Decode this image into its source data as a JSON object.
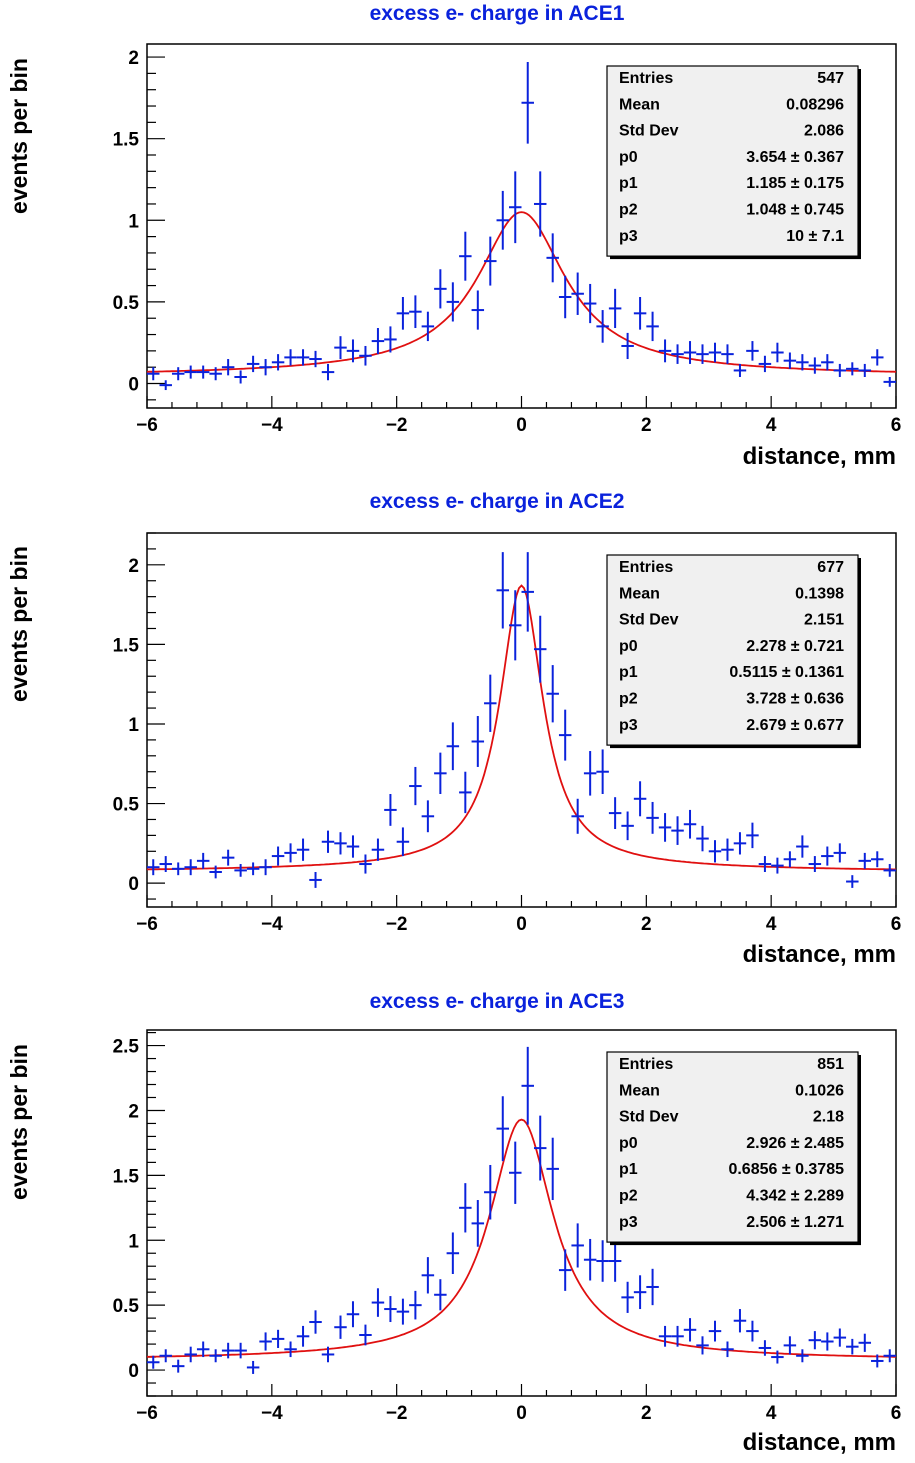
{
  "colors": {
    "data": "#0a22dc",
    "fit": "#e01010",
    "title": "#0a22dc",
    "stats_bg": "#f0f0f0"
  },
  "chart_data": [
    {
      "type": "scatter",
      "title": "excess e- charge in ACE1",
      "xlabel": "distance, mm",
      "ylabel": "events per bin",
      "xlim": [
        -6,
        6
      ],
      "ylim": [
        -0.15,
        2.08
      ],
      "xticks": [
        "−6",
        "−4",
        "−2",
        "0",
        "2",
        "4",
        "6"
      ],
      "yticks": [
        "0",
        "0.5",
        "1",
        "1.5",
        "2"
      ],
      "ytick_values": [
        0,
        0.5,
        1,
        1.5,
        2
      ],
      "fit": {
        "p0": 3.654,
        "p1": 1.185,
        "p2": 1.048,
        "p3": 10
      },
      "stats": [
        {
          "label": "Entries",
          "value": "547"
        },
        {
          "label": "Mean",
          "value": "0.08296"
        },
        {
          "label": "Std Dev",
          "value": "2.086"
        },
        {
          "label": "p0",
          "value": "3.654 ± 0.367"
        },
        {
          "label": "p1",
          "value": "1.185 ± 0.175"
        },
        {
          "label": "p2",
          "value": "1.048 ± 0.745"
        },
        {
          "label": "p3",
          "value": "10 ± 7.1"
        }
      ],
      "points": [
        [
          -5.9,
          0.06,
          0.04
        ],
        [
          -5.7,
          -0.01,
          0.03
        ],
        [
          -5.5,
          0.06,
          0.04
        ],
        [
          -5.3,
          0.07,
          0.04
        ],
        [
          -5.1,
          0.07,
          0.04
        ],
        [
          -4.9,
          0.06,
          0.04
        ],
        [
          -4.7,
          0.1,
          0.05
        ],
        [
          -4.5,
          0.04,
          0.04
        ],
        [
          -4.3,
          0.12,
          0.05
        ],
        [
          -4.1,
          0.1,
          0.05
        ],
        [
          -3.9,
          0.13,
          0.05
        ],
        [
          -3.7,
          0.16,
          0.05
        ],
        [
          -3.5,
          0.16,
          0.05
        ],
        [
          -3.3,
          0.15,
          0.05
        ],
        [
          -3.1,
          0.07,
          0.05
        ],
        [
          -2.9,
          0.22,
          0.07
        ],
        [
          -2.7,
          0.2,
          0.07
        ],
        [
          -2.5,
          0.17,
          0.06
        ],
        [
          -2.3,
          0.26,
          0.08
        ],
        [
          -2.1,
          0.27,
          0.08
        ],
        [
          -1.9,
          0.43,
          0.1
        ],
        [
          -1.7,
          0.44,
          0.1
        ],
        [
          -1.5,
          0.35,
          0.09
        ],
        [
          -1.3,
          0.58,
          0.12
        ],
        [
          -1.1,
          0.5,
          0.12
        ],
        [
          -0.9,
          0.78,
          0.15
        ],
        [
          -0.7,
          0.45,
          0.12
        ],
        [
          -0.5,
          0.75,
          0.15
        ],
        [
          -0.3,
          1.0,
          0.18
        ],
        [
          -0.1,
          1.08,
          0.22
        ],
        [
          0.1,
          1.72,
          0.25
        ],
        [
          0.3,
          1.1,
          0.2
        ],
        [
          0.5,
          0.77,
          0.15
        ],
        [
          0.7,
          0.53,
          0.13
        ],
        [
          0.9,
          0.55,
          0.13
        ],
        [
          1.1,
          0.49,
          0.12
        ],
        [
          1.3,
          0.35,
          0.1
        ],
        [
          1.5,
          0.46,
          0.12
        ],
        [
          1.7,
          0.23,
          0.08
        ],
        [
          1.9,
          0.43,
          0.1
        ],
        [
          2.1,
          0.35,
          0.09
        ],
        [
          2.3,
          0.2,
          0.07
        ],
        [
          2.5,
          0.18,
          0.06
        ],
        [
          2.7,
          0.19,
          0.07
        ],
        [
          2.9,
          0.18,
          0.06
        ],
        [
          3.1,
          0.19,
          0.06
        ],
        [
          3.3,
          0.18,
          0.06
        ],
        [
          3.5,
          0.08,
          0.04
        ],
        [
          3.7,
          0.2,
          0.06
        ],
        [
          3.9,
          0.12,
          0.05
        ],
        [
          4.1,
          0.19,
          0.06
        ],
        [
          4.3,
          0.14,
          0.05
        ],
        [
          4.5,
          0.13,
          0.05
        ],
        [
          4.7,
          0.11,
          0.05
        ],
        [
          4.9,
          0.13,
          0.05
        ],
        [
          5.1,
          0.08,
          0.04
        ],
        [
          5.3,
          0.09,
          0.04
        ],
        [
          5.5,
          0.08,
          0.04
        ],
        [
          5.7,
          0.16,
          0.05
        ],
        [
          5.9,
          0.01,
          0.03
        ]
      ]
    },
    {
      "type": "scatter",
      "title": "excess e- charge in ACE2",
      "xlabel": "distance, mm",
      "ylabel": "events per bin",
      "xlim": [
        -6,
        6
      ],
      "ylim": [
        -0.15,
        2.2
      ],
      "xticks": [
        "−6",
        "−4",
        "−2",
        "0",
        "2",
        "4",
        "6"
      ],
      "yticks": [
        "0",
        "0.5",
        "1",
        "1.5",
        "2"
      ],
      "ytick_values": [
        0,
        0.5,
        1,
        1.5,
        2
      ],
      "fit": {
        "p0": 2.278,
        "p1": 0.5115,
        "p2": 3.728,
        "p3": 2.679
      },
      "stats": [
        {
          "label": "Entries",
          "value": "677"
        },
        {
          "label": "Mean",
          "value": "0.1398"
        },
        {
          "label": "Std Dev",
          "value": "2.151"
        },
        {
          "label": "p0",
          "value": "2.278 ± 0.721"
        },
        {
          "label": "p1",
          "value": "0.5115 ± 0.1361"
        },
        {
          "label": "p2",
          "value": "3.728 ± 0.636"
        },
        {
          "label": "p3",
          "value": "2.679 ± 0.677"
        }
      ],
      "points": [
        [
          -5.9,
          0.1,
          0.05
        ],
        [
          -5.7,
          0.12,
          0.05
        ],
        [
          -5.5,
          0.09,
          0.04
        ],
        [
          -5.3,
          0.1,
          0.05
        ],
        [
          -5.1,
          0.14,
          0.05
        ],
        [
          -4.9,
          0.07,
          0.04
        ],
        [
          -4.7,
          0.16,
          0.05
        ],
        [
          -4.5,
          0.08,
          0.04
        ],
        [
          -4.3,
          0.09,
          0.04
        ],
        [
          -4.1,
          0.1,
          0.05
        ],
        [
          -3.9,
          0.17,
          0.06
        ],
        [
          -3.7,
          0.19,
          0.06
        ],
        [
          -3.5,
          0.21,
          0.07
        ],
        [
          -3.3,
          0.02,
          0.05
        ],
        [
          -3.1,
          0.26,
          0.07
        ],
        [
          -2.9,
          0.25,
          0.07
        ],
        [
          -2.7,
          0.23,
          0.07
        ],
        [
          -2.5,
          0.12,
          0.06
        ],
        [
          -2.3,
          0.21,
          0.07
        ],
        [
          -2.1,
          0.46,
          0.1
        ],
        [
          -1.9,
          0.26,
          0.09
        ],
        [
          -1.7,
          0.61,
          0.12
        ],
        [
          -1.5,
          0.42,
          0.1
        ],
        [
          -1.3,
          0.69,
          0.13
        ],
        [
          -1.1,
          0.86,
          0.15
        ],
        [
          -0.9,
          0.57,
          0.13
        ],
        [
          -0.7,
          0.89,
          0.16
        ],
        [
          -0.5,
          1.13,
          0.18
        ],
        [
          -0.3,
          1.84,
          0.24
        ],
        [
          -0.1,
          1.62,
          0.22
        ],
        [
          0.1,
          1.83,
          0.25
        ],
        [
          0.3,
          1.47,
          0.21
        ],
        [
          0.5,
          1.19,
          0.18
        ],
        [
          0.7,
          0.93,
          0.16
        ],
        [
          0.9,
          0.42,
          0.11
        ],
        [
          1.1,
          0.69,
          0.14
        ],
        [
          1.3,
          0.7,
          0.14
        ],
        [
          1.5,
          0.44,
          0.1
        ],
        [
          1.7,
          0.36,
          0.09
        ],
        [
          1.9,
          0.53,
          0.11
        ],
        [
          2.1,
          0.41,
          0.1
        ],
        [
          2.3,
          0.35,
          0.09
        ],
        [
          2.5,
          0.33,
          0.09
        ],
        [
          2.7,
          0.37,
          0.09
        ],
        [
          2.9,
          0.28,
          0.08
        ],
        [
          3.1,
          0.2,
          0.07
        ],
        [
          3.3,
          0.21,
          0.07
        ],
        [
          3.5,
          0.25,
          0.07
        ],
        [
          3.7,
          0.3,
          0.08
        ],
        [
          3.9,
          0.12,
          0.05
        ],
        [
          4.1,
          0.11,
          0.05
        ],
        [
          4.3,
          0.15,
          0.05
        ],
        [
          4.5,
          0.23,
          0.07
        ],
        [
          4.7,
          0.12,
          0.05
        ],
        [
          4.9,
          0.17,
          0.06
        ],
        [
          5.1,
          0.19,
          0.06
        ],
        [
          5.3,
          0.01,
          0.04
        ],
        [
          5.5,
          0.14,
          0.05
        ],
        [
          5.7,
          0.15,
          0.05
        ],
        [
          5.9,
          0.08,
          0.04
        ]
      ]
    },
    {
      "type": "scatter",
      "title": "excess e- charge in ACE3",
      "xlabel": "distance, mm",
      "ylabel": "events per bin",
      "xlim": [
        -6,
        6
      ],
      "ylim": [
        -0.2,
        2.62
      ],
      "xticks": [
        "−6",
        "−4",
        "−2",
        "0",
        "2",
        "4",
        "6"
      ],
      "yticks": [
        "0",
        "0.5",
        "1",
        "1.5",
        "2",
        "2.5"
      ],
      "ytick_values": [
        0,
        0.5,
        1,
        1.5,
        2,
        2.5
      ],
      "fit": {
        "p0": 2.926,
        "p1": 0.6856,
        "p2": 4.342,
        "p3": 2.506
      },
      "stats": [
        {
          "label": "Entries",
          "value": "851"
        },
        {
          "label": "Mean",
          "value": "0.1026"
        },
        {
          "label": "Std Dev",
          "value": "2.18"
        },
        {
          "label": "p0",
          "value": "2.926 ± 2.485"
        },
        {
          "label": "p1",
          "value": "0.6856 ± 0.3785"
        },
        {
          "label": "p2",
          "value": "4.342 ± 2.289"
        },
        {
          "label": "p3",
          "value": "2.506 ± 1.271"
        }
      ],
      "points": [
        [
          -5.9,
          0.06,
          0.05
        ],
        [
          -5.7,
          0.11,
          0.05
        ],
        [
          -5.5,
          0.03,
          0.05
        ],
        [
          -5.3,
          0.12,
          0.06
        ],
        [
          -5.1,
          0.16,
          0.06
        ],
        [
          -4.9,
          0.11,
          0.05
        ],
        [
          -4.7,
          0.15,
          0.06
        ],
        [
          -4.5,
          0.15,
          0.06
        ],
        [
          -4.3,
          0.02,
          0.05
        ],
        [
          -4.1,
          0.22,
          0.07
        ],
        [
          -3.9,
          0.24,
          0.07
        ],
        [
          -3.7,
          0.16,
          0.06
        ],
        [
          -3.5,
          0.26,
          0.08
        ],
        [
          -3.3,
          0.37,
          0.09
        ],
        [
          -3.1,
          0.12,
          0.06
        ],
        [
          -2.9,
          0.33,
          0.09
        ],
        [
          -2.7,
          0.43,
          0.1
        ],
        [
          -2.5,
          0.27,
          0.08
        ],
        [
          -2.3,
          0.52,
          0.11
        ],
        [
          -2.1,
          0.47,
          0.1
        ],
        [
          -1.9,
          0.45,
          0.1
        ],
        [
          -1.7,
          0.5,
          0.11
        ],
        [
          -1.5,
          0.73,
          0.14
        ],
        [
          -1.3,
          0.58,
          0.12
        ],
        [
          -1.1,
          0.9,
          0.16
        ],
        [
          -0.9,
          1.25,
          0.19
        ],
        [
          -0.7,
          1.13,
          0.18
        ],
        [
          -0.5,
          1.37,
          0.21
        ],
        [
          -0.3,
          1.86,
          0.25
        ],
        [
          -0.1,
          1.52,
          0.24
        ],
        [
          0.1,
          2.19,
          0.3
        ],
        [
          0.3,
          1.71,
          0.25
        ],
        [
          0.5,
          1.55,
          0.24
        ],
        [
          0.7,
          0.77,
          0.16
        ],
        [
          0.9,
          0.96,
          0.17
        ],
        [
          1.1,
          0.85,
          0.16
        ],
        [
          1.3,
          0.84,
          0.16
        ],
        [
          1.5,
          0.84,
          0.16
        ],
        [
          1.7,
          0.56,
          0.12
        ],
        [
          1.9,
          0.6,
          0.13
        ],
        [
          2.1,
          0.64,
          0.14
        ],
        [
          2.3,
          0.26,
          0.08
        ],
        [
          2.5,
          0.26,
          0.08
        ],
        [
          2.7,
          0.31,
          0.09
        ],
        [
          2.9,
          0.19,
          0.07
        ],
        [
          3.1,
          0.3,
          0.08
        ],
        [
          3.3,
          0.16,
          0.06
        ],
        [
          3.5,
          0.38,
          0.09
        ],
        [
          3.7,
          0.3,
          0.08
        ],
        [
          3.9,
          0.17,
          0.06
        ],
        [
          4.1,
          0.1,
          0.05
        ],
        [
          4.3,
          0.19,
          0.07
        ],
        [
          4.5,
          0.11,
          0.05
        ],
        [
          4.7,
          0.23,
          0.07
        ],
        [
          4.9,
          0.22,
          0.07
        ],
        [
          5.1,
          0.25,
          0.07
        ],
        [
          5.3,
          0.18,
          0.06
        ],
        [
          5.5,
          0.21,
          0.07
        ],
        [
          5.7,
          0.07,
          0.05
        ],
        [
          5.9,
          0.11,
          0.05
        ]
      ]
    }
  ]
}
